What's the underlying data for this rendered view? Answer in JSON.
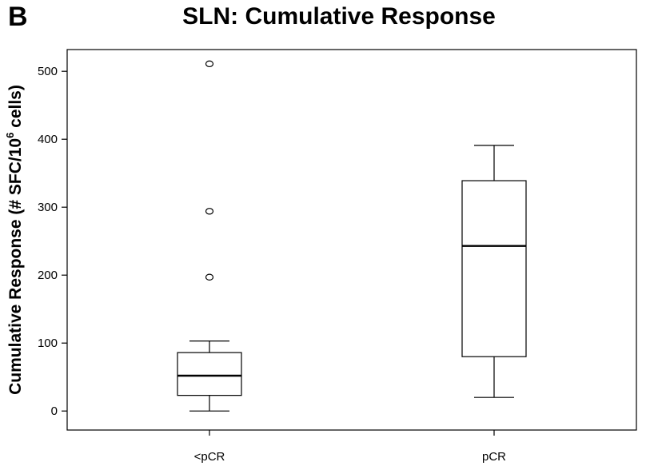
{
  "panel_label": "B",
  "chart_data": {
    "type": "box",
    "title": "SLN: Cumulative Response",
    "xlabel": "",
    "ylabel_main": "Cumulative Response (# SFC/10",
    "ylabel_sup": "6",
    "ylabel_end": " cells)",
    "ylim": [
      -28,
      532
    ],
    "yticks": [
      0,
      100,
      200,
      300,
      400,
      500
    ],
    "ytick_labels": [
      "0",
      "100",
      "200",
      "300",
      "400",
      "500"
    ],
    "grid": false,
    "categories": [
      "<pCR",
      "pCR"
    ],
    "boxes": [
      {
        "category": "<pCR",
        "whisker_low": 0,
        "q1": 23,
        "median": 52,
        "q3": 86,
        "whisker_high": 103,
        "outliers": [
          197,
          294,
          511
        ]
      },
      {
        "category": "pCR",
        "whisker_low": 20,
        "q1": 80,
        "median": 243,
        "q3": 339,
        "whisker_high": 391,
        "outliers": []
      }
    ]
  }
}
